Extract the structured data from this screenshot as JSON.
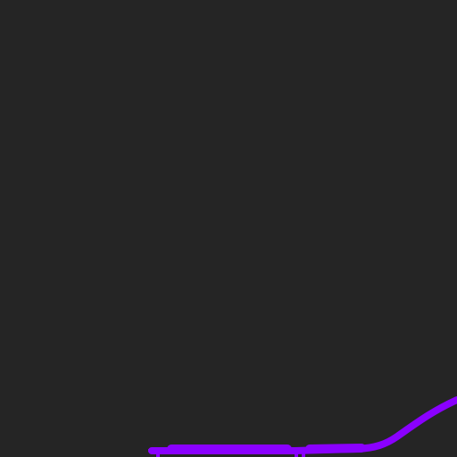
{
  "scene": {
    "background_color": "#252525",
    "stroke_color": "#8a00ff",
    "elements": [
      {
        "name": "connector-curve",
        "kind": "wire-curve"
      },
      {
        "name": "node-handle-left",
        "kind": "handle"
      },
      {
        "name": "node-handle-right",
        "kind": "handle"
      }
    ]
  }
}
